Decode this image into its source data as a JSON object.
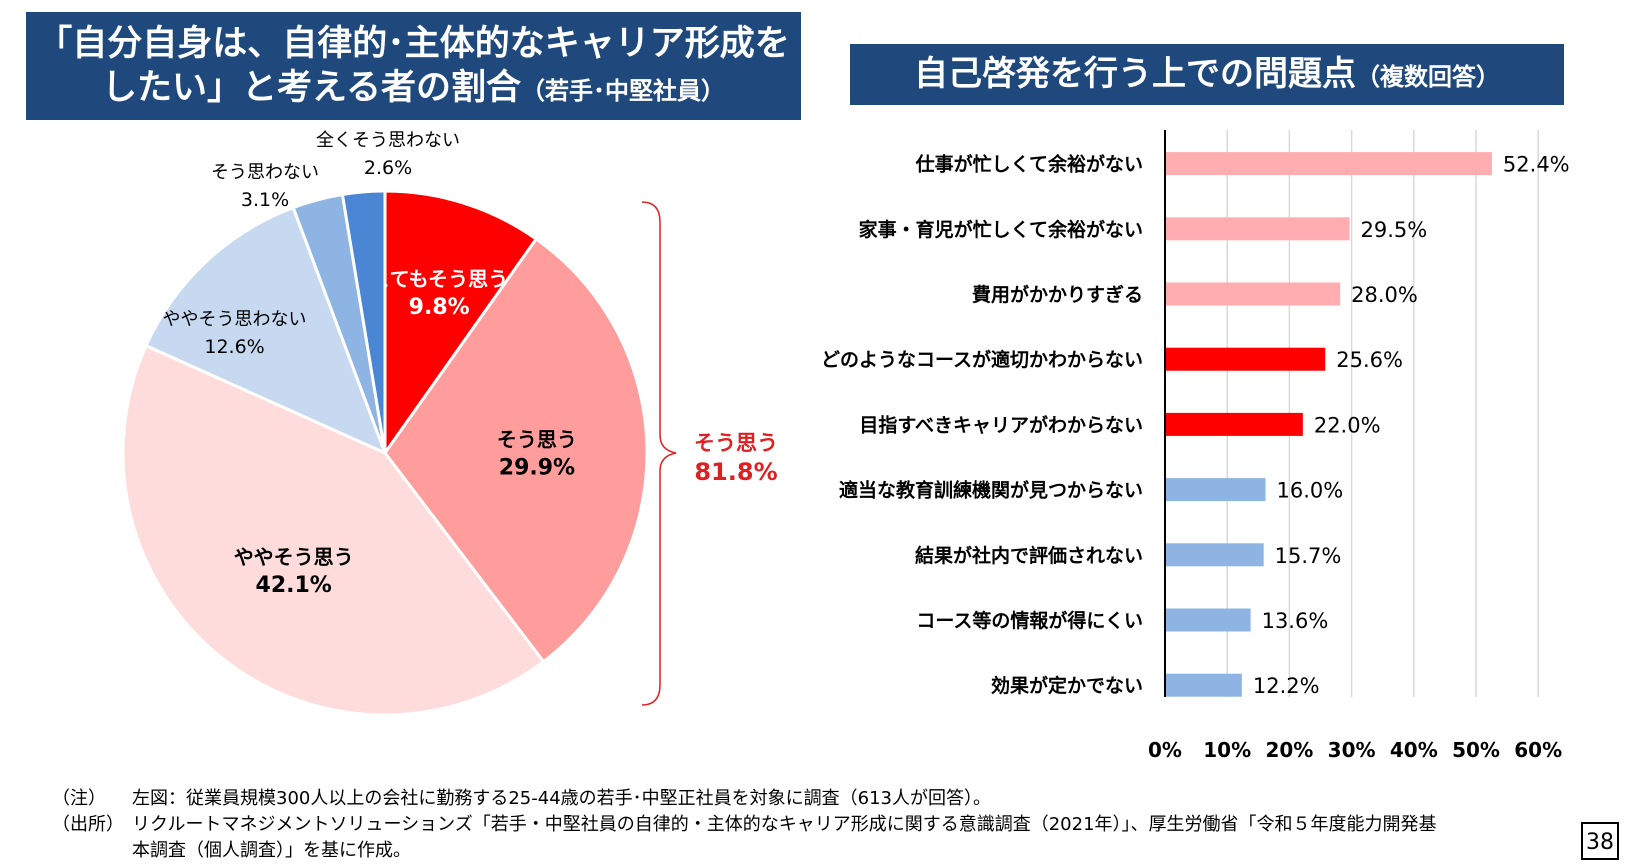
{
  "left_title": {
    "line1": "「自分自身は、自律的･主体的なキャリア形成を",
    "line2": "したい」と考える者の割合",
    "sub": "（若手･中堅社員）"
  },
  "right_title": {
    "main": "自己啓発を行う上での問題点",
    "sub": "（複数回答）"
  },
  "chart_data": [
    {
      "type": "pie",
      "start_angle_deg": 0,
      "direction": "clockwise",
      "slices": [
        {
          "label": "とてもそう思う",
          "value": 9.8,
          "display": "9.8%",
          "color": "#ff0000",
          "label_color": "#ffffff",
          "bold": true
        },
        {
          "label": "そう思う",
          "value": 29.9,
          "display": "29.9%",
          "color": "#ff9c9c",
          "label_color": "#000000",
          "bold": true
        },
        {
          "label": "ややそう思う",
          "value": 42.1,
          "display": "42.1%",
          "color": "#ffdcdc",
          "label_color": "#000000",
          "bold": true
        },
        {
          "label": "ややそう思わない",
          "value": 12.6,
          "display": "12.6%",
          "color": "#c6d9f0",
          "label_color": "#000000",
          "bold": false
        },
        {
          "label": "そう思わない",
          "value": 3.1,
          "display": "3.1%",
          "color": "#8db4e2",
          "label_color": "#000000",
          "bold": false
        },
        {
          "label": "全くそう思わない",
          "value": 2.6,
          "display": "2.6%",
          "color": "#4a86d4",
          "label_color": "#000000",
          "bold": false
        }
      ],
      "bracket_summary": {
        "label": "そう思う",
        "value": "81.8%",
        "color": "#e02020"
      }
    },
    {
      "type": "bar",
      "orientation": "horizontal",
      "categories": [
        "仕事が忙しくて余裕がない",
        "家事・育児が忙しくて余裕がない",
        "費用がかかりすぎる",
        "どのようなコースが適切かわからない",
        "目指すべきキャリアがわからない",
        "適当な教育訓練機関が見つからない",
        "結果が社内で評価されない",
        "コース等の情報が得にくい",
        "効果が定かでない"
      ],
      "values": [
        52.4,
        29.5,
        28.0,
        25.6,
        22.0,
        16.0,
        15.7,
        13.6,
        12.2
      ],
      "value_labels": [
        "52.4%",
        "29.5%",
        "28.0%",
        "25.6%",
        "22.0%",
        "16.0%",
        "15.7%",
        "13.6%",
        "12.2%"
      ],
      "bar_colors": [
        "#ffadb0",
        "#ffadb0",
        "#ffadb0",
        "#ff0000",
        "#ff0000",
        "#8db4e2",
        "#8db4e2",
        "#8db4e2",
        "#8db4e2"
      ],
      "xlim": [
        0,
        60
      ],
      "xticks": [
        "0%",
        "10%",
        "20%",
        "30%",
        "40%",
        "50%",
        "60%"
      ],
      "grid": true
    }
  ],
  "notes": [
    {
      "label": "（注）",
      "text": "左図：従業員規模300人以上の会社に勤務する25-44歳の若手･中堅正社員を対象に調査（613人が回答）。"
    },
    {
      "label": "（出所）",
      "text": "リクルートマネジメントソリューションズ「若手・中堅社員の自律的・主体的なキャリア形成に関する意識調査（2021年）」、厚生労働省「令和５年度能力開発基"
    },
    {
      "label": "",
      "text": "本調査（個人調査）」を基に作成。"
    }
  ],
  "page_number": "38"
}
